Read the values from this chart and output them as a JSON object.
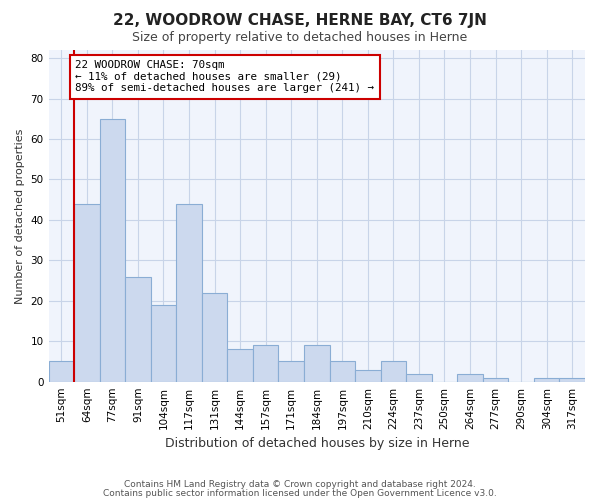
{
  "title": "22, WOODROW CHASE, HERNE BAY, CT6 7JN",
  "subtitle": "Size of property relative to detached houses in Herne",
  "xlabel": "Distribution of detached houses by size in Herne",
  "ylabel": "Number of detached properties",
  "bar_labels": [
    "51sqm",
    "64sqm",
    "77sqm",
    "91sqm",
    "104sqm",
    "117sqm",
    "131sqm",
    "144sqm",
    "157sqm",
    "171sqm",
    "184sqm",
    "197sqm",
    "210sqm",
    "224sqm",
    "237sqm",
    "250sqm",
    "264sqm",
    "277sqm",
    "290sqm",
    "304sqm",
    "317sqm"
  ],
  "bar_values": [
    5,
    44,
    65,
    26,
    19,
    44,
    22,
    8,
    9,
    5,
    9,
    5,
    3,
    5,
    2,
    0,
    2,
    1,
    0,
    1,
    1
  ],
  "bar_color": "#ccd9ee",
  "bar_edge_color": "#8aadd4",
  "vline_x": 1.5,
  "vline_color": "#cc0000",
  "annotation_line1": "22 WOODROW CHASE: 70sqm",
  "annotation_line2": "← 11% of detached houses are smaller (29)",
  "annotation_line3": "89% of semi-detached houses are larger (241) →",
  "annotation_box_color": "white",
  "annotation_box_edge": "#cc0000",
  "ylim": [
    0,
    82
  ],
  "yticks": [
    0,
    10,
    20,
    30,
    40,
    50,
    60,
    70,
    80
  ],
  "footer_line1": "Contains HM Land Registry data © Crown copyright and database right 2024.",
  "footer_line2": "Contains public sector information licensed under the Open Government Licence v3.0.",
  "bg_color": "#ffffff",
  "plot_bg_color": "#f0f4fc",
  "grid_color": "#c8d4e8",
  "title_fontsize": 11,
  "subtitle_fontsize": 9,
  "xlabel_fontsize": 9,
  "ylabel_fontsize": 8,
  "tick_fontsize": 7.5,
  "footer_fontsize": 6.5
}
